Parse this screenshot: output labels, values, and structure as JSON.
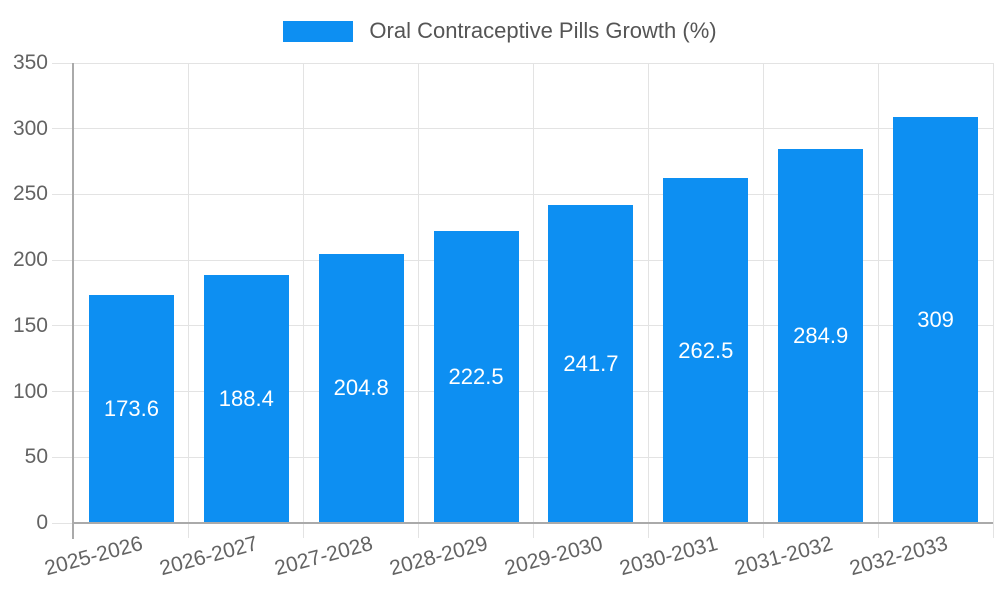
{
  "colors": {
    "bar": "#0d8ff2",
    "grid": "#e3e3e3",
    "axis": "#aaaaaa",
    "tick_text": "#636363",
    "legend_text": "#555555",
    "value_text": "#ffffff"
  },
  "chart_data": {
    "type": "bar",
    "title": "",
    "legend": "Oral Contraceptive Pills Growth (%)",
    "legend_position": "top-center",
    "categories": [
      "2025-2026",
      "2026-2027",
      "2027-2028",
      "2028-2029",
      "2029-2030",
      "2030-2031",
      "2031-2032",
      "2032-2033"
    ],
    "values": [
      173.6,
      188.4,
      204.8,
      222.5,
      241.7,
      262.5,
      284.9,
      309
    ],
    "value_labels": [
      "173.6",
      "188.4",
      "204.8",
      "222.5",
      "241.7",
      "262.5",
      "284.9",
      "309"
    ],
    "xlabel": "",
    "ylabel": "",
    "ylim": [
      0,
      350
    ],
    "yticks": [
      0,
      50,
      100,
      150,
      200,
      250,
      300,
      350
    ],
    "grid": true,
    "x_label_rotation_deg": -15
  }
}
